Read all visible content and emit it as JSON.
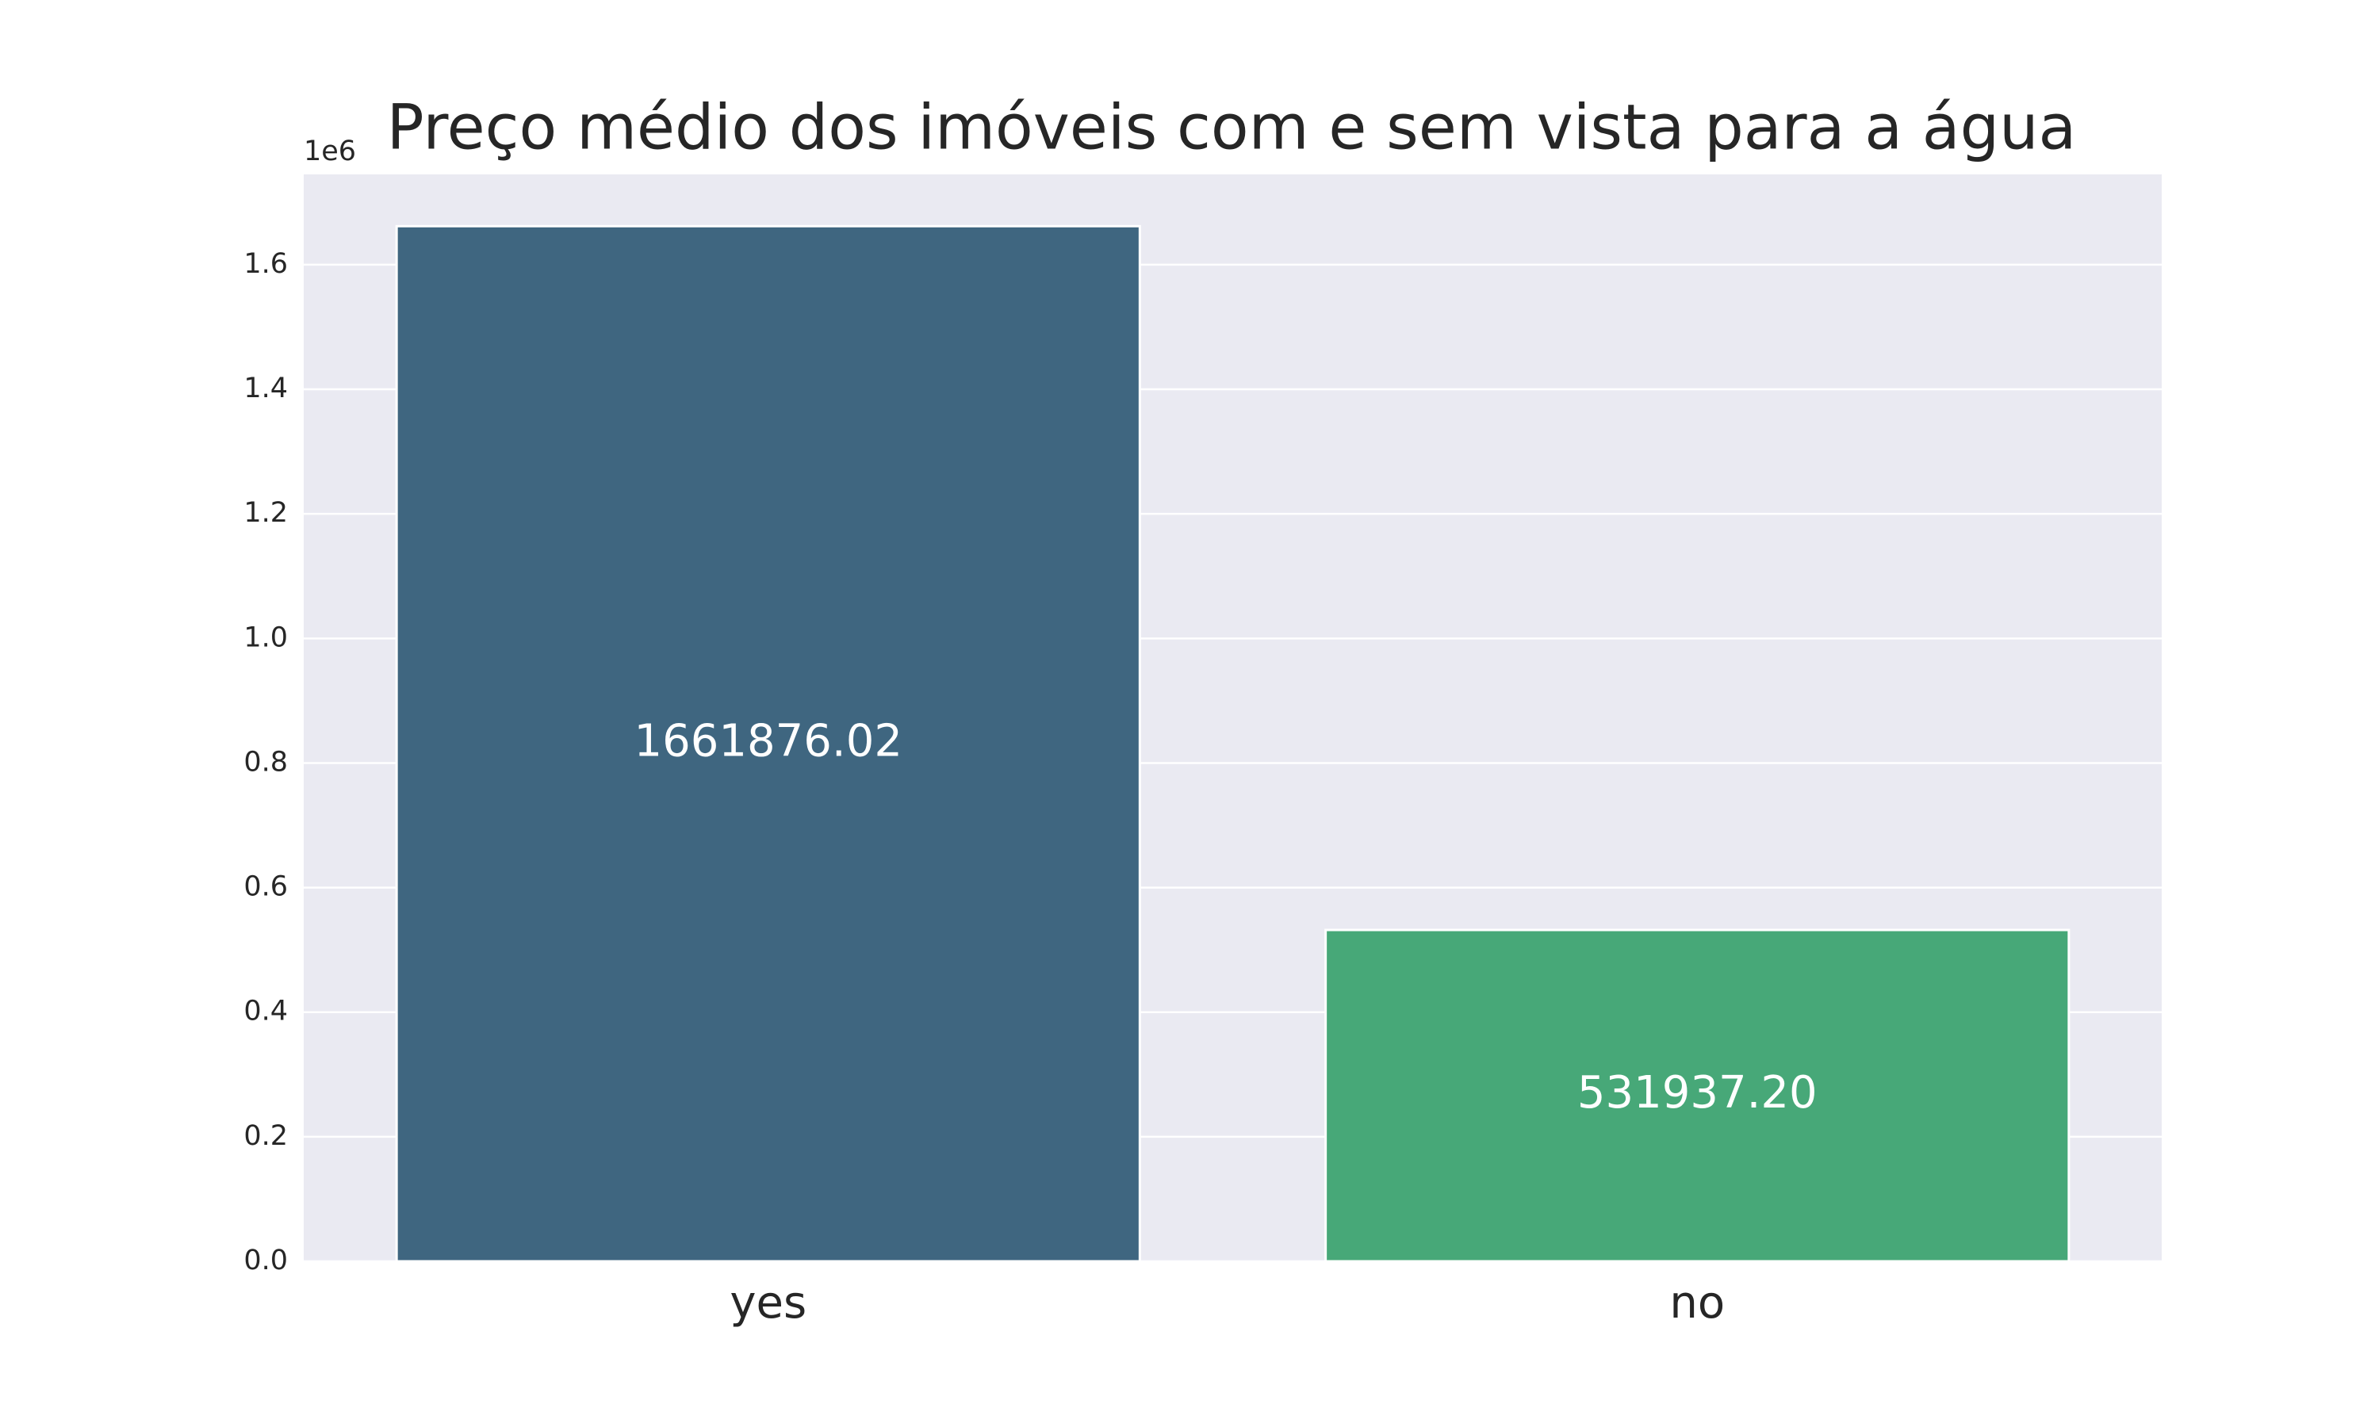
{
  "chart_data": {
    "type": "bar",
    "title": "Preço médio dos imóveis com e sem vista para a água",
    "categories": [
      "yes",
      "no"
    ],
    "values": [
      1661876.02,
      531937.2
    ],
    "value_labels": [
      "1661876.02",
      "531937.20"
    ],
    "colors": [
      "#3f6680",
      "#47a878"
    ],
    "ylim": [
      0,
      1744970
    ],
    "yticks": [
      {
        "value": 0,
        "label": "0.0"
      },
      {
        "value": 200000,
        "label": "0.2"
      },
      {
        "value": 400000,
        "label": "0.4"
      },
      {
        "value": 600000,
        "label": "0.6"
      },
      {
        "value": 800000,
        "label": "0.8"
      },
      {
        "value": 1000000,
        "label": "1.0"
      },
      {
        "value": 1200000,
        "label": "1.2"
      },
      {
        "value": 1400000,
        "label": "1.4"
      },
      {
        "value": 1600000,
        "label": "1.6"
      }
    ],
    "y_offset_label": "1e6",
    "grid": true
  }
}
